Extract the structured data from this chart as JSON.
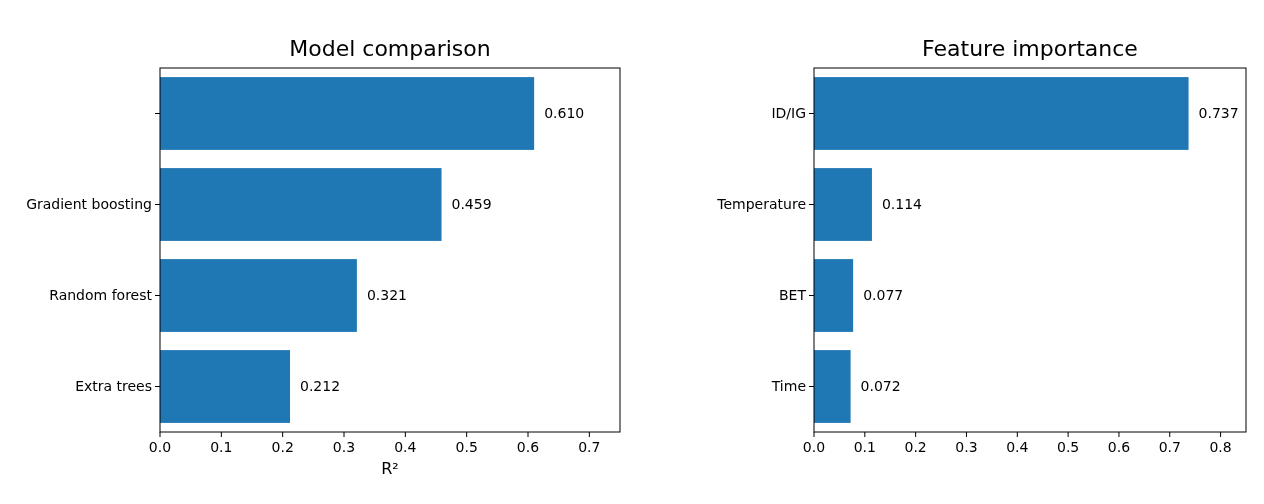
{
  "chart_data": [
    {
      "type": "bar",
      "orientation": "horizontal",
      "title": "Model comparison",
      "xlabel": "R²",
      "categories": [
        null,
        "Gradient boosting",
        "Random forest",
        "Extra trees"
      ],
      "values": [
        0.61,
        0.459,
        0.321,
        0.212
      ],
      "value_labels": [
        "0.610",
        "0.459",
        "0.321",
        "0.212"
      ],
      "color": "#1f77b4",
      "xlim": [
        0,
        0.75
      ],
      "xticks": [
        {
          "value": 0,
          "label": "0.0"
        },
        0.1,
        0.2,
        0.3,
        0.4,
        0.5,
        0.6,
        0.7
      ]
    },
    {
      "type": "bar",
      "orientation": "horizontal",
      "title": "Feature importance",
      "categories": [
        "ID/IG",
        "Temperature",
        "BET",
        "Time"
      ],
      "values": [
        0.737,
        0.114,
        0.077,
        0.072
      ],
      "value_labels": [
        "0.737",
        "0.114",
        "0.077",
        "0.072"
      ],
      "color": "#1f77b4",
      "xlim": [
        0,
        0.85
      ],
      "xticks": [
        {
          "value": 0,
          "label": "0.0"
        },
        0.1,
        0.2,
        0.3,
        0.4,
        0.5,
        0.6,
        0.7,
        0.8
      ]
    }
  ]
}
